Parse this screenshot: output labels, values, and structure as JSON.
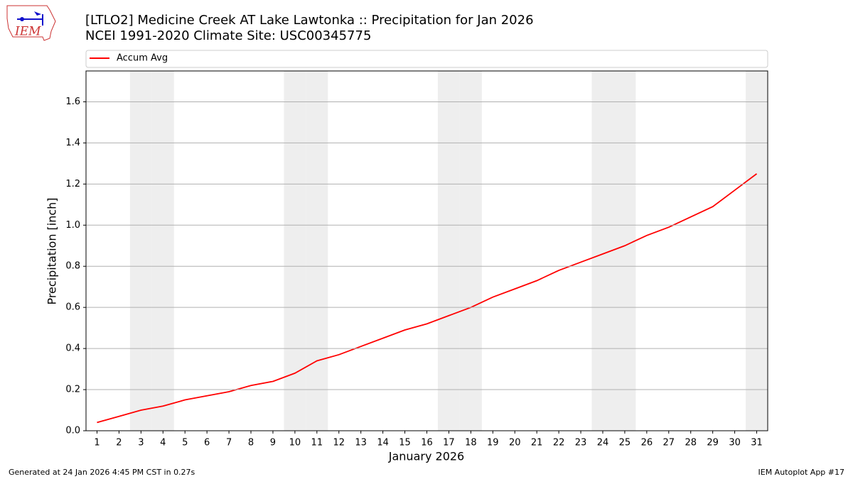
{
  "chart_data": {
    "type": "line",
    "title": "[LTLO2] Medicine Creek  AT Lake Lawtonka :: Precipitation for Jan 2026",
    "subtitle": "NCEI 1991-2020 Climate Site: USC00345775",
    "logo_text": "IEM",
    "x_label": "January 2026",
    "y_label": "Precipitation [inch]",
    "x": [
      1,
      2,
      3,
      4,
      5,
      6,
      7,
      8,
      9,
      10,
      11,
      12,
      13,
      14,
      15,
      16,
      17,
      18,
      19,
      20,
      21,
      22,
      23,
      24,
      25,
      26,
      27,
      28,
      29,
      30,
      31
    ],
    "series": [
      {
        "name": "Accum Avg",
        "color": "#ff0000",
        "values": [
          0.04,
          0.07,
          0.1,
          0.12,
          0.15,
          0.17,
          0.19,
          0.22,
          0.24,
          0.28,
          0.34,
          0.37,
          0.41,
          0.45,
          0.49,
          0.52,
          0.56,
          0.6,
          0.65,
          0.69,
          0.73,
          0.78,
          0.82,
          0.86,
          0.9,
          0.95,
          0.99,
          1.04,
          1.09,
          1.17,
          1.25
        ]
      }
    ],
    "shaded_days": [
      3,
      4,
      10,
      11,
      17,
      18,
      24,
      25,
      31
    ],
    "shade_color": "#eeeeee",
    "xlim": [
      0.5,
      31.5
    ],
    "xticks": [
      1,
      2,
      3,
      4,
      5,
      6,
      7,
      8,
      9,
      10,
      11,
      12,
      13,
      14,
      15,
      16,
      17,
      18,
      19,
      20,
      21,
      22,
      23,
      24,
      25,
      26,
      27,
      28,
      29,
      30,
      31
    ],
    "ylim": [
      0,
      1.75
    ],
    "yticks": [
      {
        "value": 0,
        "label": "0.0"
      },
      {
        "value": 0.2,
        "label": "0.2"
      },
      {
        "value": 0.4,
        "label": "0.4"
      },
      {
        "value": 0.6,
        "label": "0.6"
      },
      {
        "value": 0.8,
        "label": "0.8"
      },
      {
        "value": 1.0,
        "label": "1.0"
      },
      {
        "value": 1.2,
        "label": "1.2"
      },
      {
        "value": 1.4,
        "label": "1.4"
      },
      {
        "value": 1.6,
        "label": "1.6"
      }
    ],
    "grid": true,
    "legend_position": "top",
    "footer_left": "Generated at 24 Jan 2026 4:45 PM CST in 0.27s",
    "footer_right": "IEM Autoplot App #17"
  }
}
